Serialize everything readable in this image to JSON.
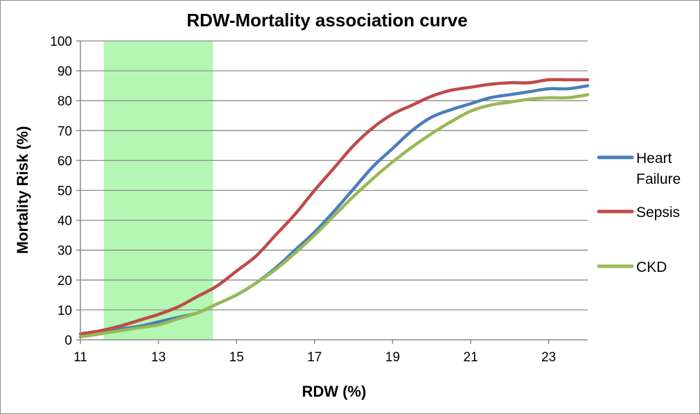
{
  "chart_data": {
    "type": "line",
    "title": "RDW-Mortality association curve",
    "xlabel": "RDW (%)",
    "ylabel": "Mortality Risk (%)",
    "xlim": [
      11,
      24
    ],
    "ylim": [
      0,
      100
    ],
    "x_ticks": [
      11,
      13,
      15,
      17,
      19,
      21,
      23
    ],
    "y_ticks": [
      0,
      10,
      20,
      30,
      40,
      50,
      60,
      70,
      80,
      90,
      100
    ],
    "grid": "horizontal",
    "legend_position": "right",
    "shaded_region": {
      "x_range": [
        11.6,
        14.4
      ],
      "color": "#b4f7b4"
    },
    "series": [
      {
        "name": "Heart Failure",
        "color": "#4a7ebb",
        "x": [
          11,
          11.5,
          12,
          12.5,
          13,
          13.5,
          14,
          14.5,
          15,
          15.5,
          16,
          16.5,
          17,
          17.5,
          18,
          18.5,
          19,
          19.5,
          20,
          20.5,
          21,
          21.5,
          22,
          22.5,
          23,
          23.5,
          24
        ],
        "y": [
          1,
          2,
          3.5,
          4.5,
          6,
          7.5,
          9,
          12,
          15,
          19,
          24,
          30,
          36,
          43,
          50.5,
          58,
          64,
          70,
          74.5,
          77,
          79,
          81,
          82,
          83,
          84,
          84,
          85
        ]
      },
      {
        "name": "Sepsis",
        "color": "#be4b48",
        "x": [
          11,
          11.5,
          12,
          12.5,
          13,
          13.5,
          14,
          14.5,
          15,
          15.5,
          16,
          16.5,
          17,
          17.5,
          18,
          18.5,
          19,
          19.5,
          20,
          20.5,
          21,
          21.5,
          22,
          22.5,
          23,
          23.5,
          24
        ],
        "y": [
          2,
          3,
          4.5,
          6.5,
          8.5,
          11,
          14.5,
          18,
          23,
          28,
          35,
          42,
          50,
          57.5,
          65,
          71,
          75.5,
          78.5,
          81.5,
          83.5,
          84.5,
          85.5,
          86,
          86,
          87,
          87,
          87
        ]
      },
      {
        "name": "CKD",
        "color": "#98b954",
        "x": [
          11,
          11.5,
          12,
          12.5,
          13,
          13.5,
          14,
          14.5,
          15,
          15.5,
          16,
          16.5,
          17,
          17.5,
          18,
          18.5,
          19,
          19.5,
          20,
          20.5,
          21,
          21.5,
          22,
          22.5,
          23,
          23.5,
          24
        ],
        "y": [
          1,
          2,
          3,
          4,
          5,
          7,
          9,
          12,
          15,
          19,
          23.5,
          29,
          35,
          41.5,
          48,
          54,
          59.5,
          64.5,
          69,
          73,
          76.5,
          78.5,
          79.5,
          80.5,
          81,
          81,
          82
        ]
      }
    ]
  }
}
